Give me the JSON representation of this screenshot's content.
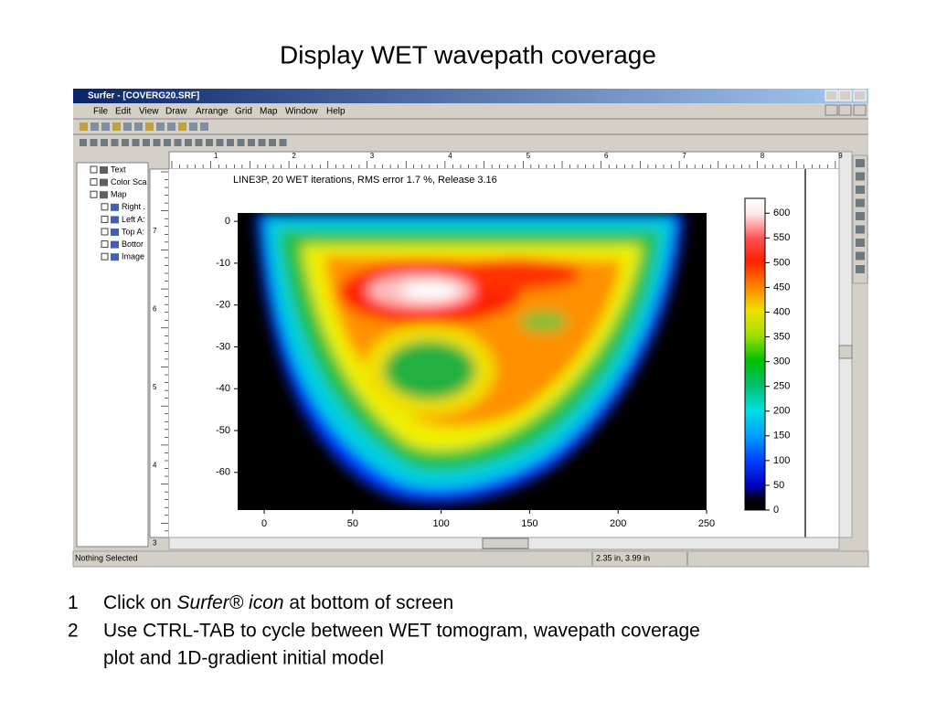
{
  "slide_title": "Display WET wavepath coverage",
  "window": {
    "title": "Surfer - [COVERG20.SRF]",
    "menu": [
      "File",
      "Edit",
      "View",
      "Draw",
      "Arrange",
      "Grid",
      "Map",
      "Window",
      "Help"
    ],
    "object_tree": [
      "Text",
      "Color Sca",
      "Map",
      "Right .",
      "Left A:",
      "Top A:",
      "Bottor",
      "Image"
    ],
    "ruler_top": [
      1,
      2,
      3,
      4,
      5,
      6,
      7,
      8,
      9
    ],
    "ruler_left": [
      7,
      6,
      5,
      4,
      3
    ],
    "status": [
      "Nothing Selected",
      "2.35 in, 3.99 in"
    ]
  },
  "plot": {
    "title": "LINE3P,  20 WET iterations,  RMS error 1.7 %,  Release 3.16",
    "xlim": [
      -15,
      250
    ],
    "xticks": [
      0,
      50,
      100,
      150,
      200,
      250
    ],
    "ylim": [
      -69,
      2
    ],
    "yticks": [
      0,
      -10,
      -20,
      -30,
      -40,
      -50,
      -60
    ],
    "colorbar": {
      "lim": [
        0,
        630
      ],
      "ticks": [
        0,
        50,
        100,
        150,
        200,
        250,
        300,
        350,
        400,
        450,
        500,
        550,
        600
      ]
    }
  },
  "notes": [
    {
      "number": "1",
      "parts": [
        "Click on ",
        "Surfer® icon",
        " at bottom of screen"
      ]
    },
    {
      "number": "2",
      "lines": [
        "Use CTRL-TAB to cycle  between  WET tomogram, wavepath coverage",
        "plot and 1D-gradient initial model"
      ]
    }
  ]
}
